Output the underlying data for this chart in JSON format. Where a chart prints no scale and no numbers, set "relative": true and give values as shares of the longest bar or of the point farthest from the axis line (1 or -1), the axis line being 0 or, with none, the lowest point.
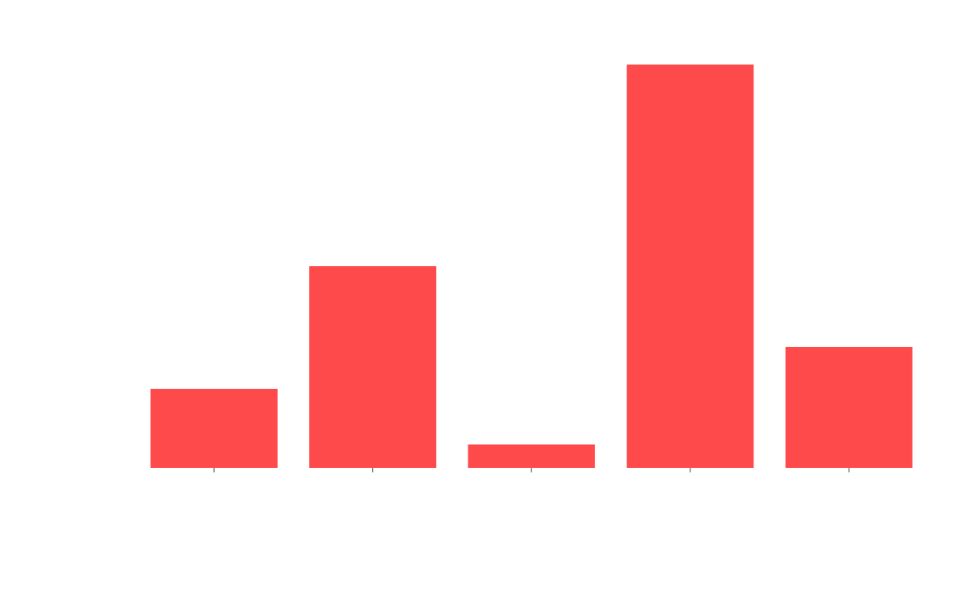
{
  "chart_data": {
    "type": "bar",
    "relative": true,
    "grid": false,
    "legend": false,
    "categories": [
      null,
      null,
      null,
      null,
      null
    ],
    "values": [
      0.196,
      0.5,
      0.058,
      1,
      0.3
    ],
    "color": "#ff4a4c"
  }
}
